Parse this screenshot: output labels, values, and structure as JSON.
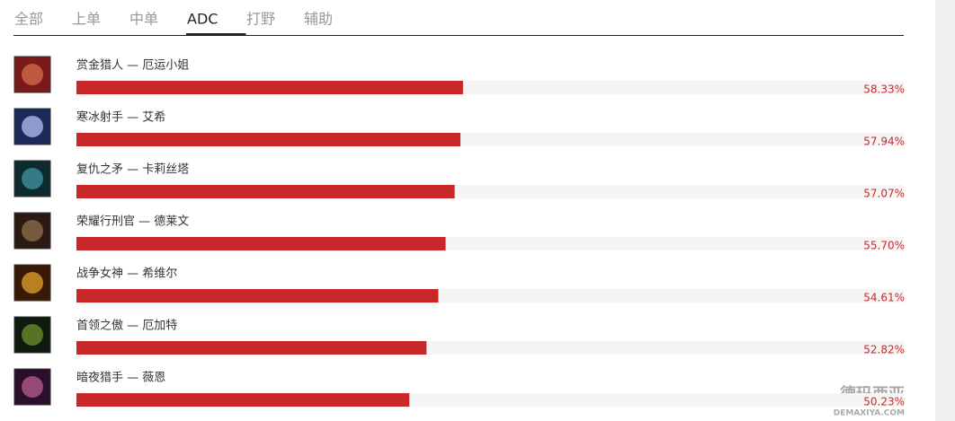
{
  "tabs": [
    "全部",
    "上单",
    "中单",
    "ADC",
    "打野",
    "辅助"
  ],
  "active_tab": 3,
  "chart_data": {
    "type": "bar",
    "categories": [
      "赏金猎人 — 厄运小姐",
      "寒冰射手 — 艾希",
      "复仇之矛 — 卡莉丝塔",
      "荣耀行刑官 — 德莱文",
      "战争女神 — 希维尔",
      "首领之傲 — 厄加特",
      "暗夜猎手 — 薇恩"
    ],
    "values": [
      58.33,
      57.94,
      57.07,
      55.7,
      54.61,
      52.82,
      50.23
    ],
    "value_labels": [
      "58.33%",
      "57.94%",
      "57.07%",
      "55.70%",
      "54.61%",
      "52.82%",
      "50.23%"
    ],
    "color": "#c8282a"
  },
  "watermark": {
    "title": "德玛西亚",
    "url": "DEMAXIYA.COM"
  }
}
